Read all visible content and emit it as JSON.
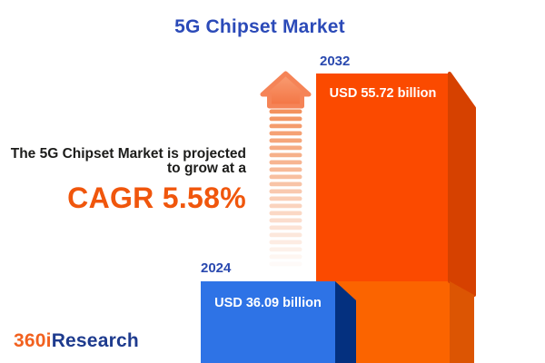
{
  "title": "5G Chipset Market",
  "description": {
    "line1": "The 5G Chipset Market is projected",
    "line2": "to grow at a",
    "cagr_text": "CAGR 5.58%"
  },
  "logo": {
    "part1": "360i",
    "part2": "Research"
  },
  "chart_data": {
    "type": "bar",
    "title": "5G Chipset Market",
    "categories": [
      "2024",
      "2032"
    ],
    "series": [
      {
        "name": "5G Chipset Market size",
        "values": [
          36.09,
          55.72
        ]
      }
    ],
    "unit": "USD billion",
    "bar_labels": [
      "USD 36.09 billion",
      "USD 55.72 billion"
    ],
    "cagr_percent": 5.58,
    "legend": "none",
    "grid": "off",
    "layout": "3d bars cropped at bottom edge, growth arrow between text and bars",
    "colors": {
      "bar_2024_front": "#2E73E6",
      "bar_2024_side": "#04307F",
      "bar_2032_front_top": "#FB4A00",
      "bar_2032_front_bottom": "#FB6400",
      "bar_2032_side_top": "#D64100",
      "bar_2032_side_bottom": "#DC5503",
      "arrow_stripe": "#F28A52",
      "arrow_head_top": "#F99E74",
      "arrow_head_bottom": "#F37443",
      "accent_orange_text": "#F0560C",
      "heading_blue": "#2B4AB8",
      "year_label_blue": "#2A49AF"
    }
  }
}
